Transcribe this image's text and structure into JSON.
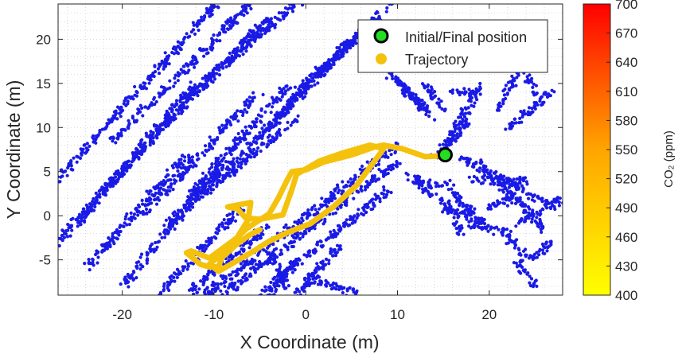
{
  "chart_data": {
    "type": "scatter",
    "xlabel": "X Coordinate (m)",
    "ylabel": "Y Coordinate (m)",
    "xlim": [
      -27,
      28
    ],
    "ylim": [
      -9,
      24
    ],
    "xticks": [
      -20,
      -10,
      0,
      10,
      20
    ],
    "yticks": [
      -5,
      0,
      5,
      10,
      15,
      20
    ],
    "grid": "on (minor dotted)",
    "legend_location": "top-right",
    "legend": [
      {
        "label": "Initial/Final position",
        "marker": "circle",
        "face": "#22dd22",
        "edge": "#000000"
      },
      {
        "label": "Trajectory",
        "marker": "circle",
        "face": "#f4c20d"
      }
    ],
    "point_cloud_color": "#1a1ae6",
    "start_end_position": [
      15.2,
      6.9
    ],
    "trajectory": [
      [
        15.2,
        6.8
      ],
      [
        13,
        6.7
      ],
      [
        10.5,
        7.6
      ],
      [
        8.5,
        8.0
      ],
      [
        7.5,
        7.8
      ],
      [
        5,
        6.9
      ],
      [
        2,
        6.1
      ],
      [
        0,
        5.2
      ],
      [
        -1.5,
        5.0
      ],
      [
        -2,
        4.1
      ],
      [
        -3,
        2.0
      ],
      [
        -4,
        0.2
      ],
      [
        -5.5,
        -0.8
      ],
      [
        -6.5,
        -1.5
      ],
      [
        -7.5,
        -2.5
      ],
      [
        -8.5,
        -3.5
      ],
      [
        -9.5,
        -4.6
      ],
      [
        -10.5,
        -5.5
      ],
      [
        -9.5,
        -6.3
      ],
      [
        -8,
        -5.4
      ],
      [
        -6,
        -4.2
      ],
      [
        -4,
        -2.9
      ],
      [
        -2,
        -1.9
      ],
      [
        0.5,
        -0.9
      ],
      [
        3,
        1.0
      ],
      [
        5.5,
        3.4
      ],
      [
        8.5,
        7.6
      ],
      [
        7,
        8.0
      ],
      [
        4,
        7.1
      ],
      [
        1.5,
        6.2
      ],
      [
        -1,
        4.7
      ],
      [
        -1.5,
        3.0
      ],
      [
        -2.5,
        0.1
      ],
      [
        -5,
        -0.4
      ],
      [
        -6.5,
        -0.3
      ],
      [
        -7.5,
        0.8
      ],
      [
        -8.5,
        1.0
      ],
      [
        -6,
        1.5
      ],
      [
        -6.3,
        -0.5
      ],
      [
        -7.5,
        -2.5
      ],
      [
        -10.5,
        -4.8
      ],
      [
        -12.5,
        -4.0
      ],
      [
        -13,
        -4.2
      ],
      [
        -11.5,
        -5.5
      ],
      [
        -10.5,
        -5.8
      ],
      [
        -9.5,
        -5.8
      ],
      [
        -9.2,
        -4.8
      ],
      [
        -7.5,
        -3.2
      ],
      [
        -6,
        -2.1
      ],
      [
        -5,
        -1.6
      ]
    ],
    "point_cloud_segments": [
      [
        -28,
        3,
        -8,
        26
      ],
      [
        -21,
        8.5,
        -6,
        24
      ],
      [
        -16,
        9.5,
        -4,
        22.5
      ],
      [
        -14,
        12.5,
        0,
        25
      ],
      [
        -25,
        -1,
        -12,
        15
      ],
      [
        -27,
        -3,
        -14,
        12
      ],
      [
        -18,
        0,
        -5,
        14
      ],
      [
        -13,
        2,
        -2,
        14.5
      ],
      [
        -15,
        -1,
        -6,
        8
      ],
      [
        -11,
        2.5,
        -1,
        11
      ],
      [
        -6,
        8,
        5,
        20
      ],
      [
        -4,
        10,
        7,
        22
      ],
      [
        -1,
        14,
        10,
        24.5
      ],
      [
        -24,
        -6,
        -13,
        7
      ],
      [
        -20,
        -8,
        -9,
        6
      ],
      [
        -16,
        -9,
        -7,
        1
      ],
      [
        -13,
        -9,
        -4,
        -1
      ],
      [
        -11,
        -9,
        10,
        8
      ],
      [
        -9,
        -9,
        10,
        6.2
      ],
      [
        -5,
        -9,
        9,
        3
      ],
      [
        -1,
        -9,
        4,
        -3
      ],
      [
        0,
        -7,
        6,
        -9
      ],
      [
        -4,
        -9,
        -1,
        -5
      ],
      [
        -2,
        -8,
        -4,
        -4
      ],
      [
        9,
        16,
        13,
        12
      ],
      [
        10,
        15.5,
        14,
        11
      ],
      [
        13,
        15,
        15,
        12
      ],
      [
        15.5,
        8,
        19,
        15
      ],
      [
        14,
        6.5,
        18,
        11
      ],
      [
        16,
        14,
        19,
        14
      ],
      [
        21,
        12,
        23,
        16
      ],
      [
        24,
        16,
        25,
        14
      ],
      [
        17,
        6.5,
        27,
        1
      ],
      [
        19,
        6,
        26,
        -1.5
      ],
      [
        22,
        10,
        27,
        14
      ],
      [
        15,
        4,
        19,
        -0.5
      ],
      [
        15,
        1,
        20,
        -1
      ],
      [
        11,
        4.5,
        15,
        3
      ],
      [
        12,
        3.8,
        14,
        2.3
      ],
      [
        18,
        -1,
        22,
        -2
      ],
      [
        22,
        -2.5,
        24,
        -4.5
      ],
      [
        23,
        -1,
        28,
        2
      ],
      [
        24,
        -5,
        27,
        -3
      ],
      [
        23,
        -5,
        25,
        -8
      ],
      [
        18,
        4,
        24,
        4
      ],
      [
        20,
        1,
        23,
        2
      ],
      [
        15,
        2,
        17,
        -2
      ]
    ]
  }
}
